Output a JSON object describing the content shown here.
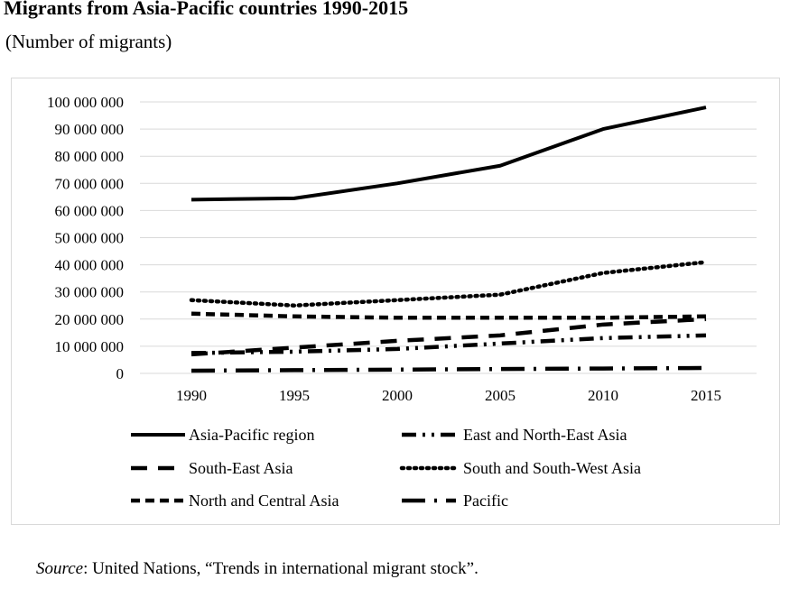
{
  "title": "Migrants from Asia-Pacific countries 1990-2015",
  "subtitle": "(Number of migrants)",
  "source": {
    "label": "Source",
    "text": ": United Nations, “Trends in international migrant stock”."
  },
  "chart_data": {
    "type": "line",
    "title": "Migrants from Asia-Pacific countries 1990-2015",
    "ylabel": "Number of migrants",
    "xlabel": "",
    "x": [
      "1990",
      "1995",
      "2000",
      "2005",
      "2010",
      "2015"
    ],
    "yticks": [
      "0",
      "10 000 000",
      "20 000 000",
      "30 000 000",
      "40 000 000",
      "50 000 000",
      "60 000 000",
      "70 000 000",
      "80 000 000",
      "90 000 000",
      "100 000 000"
    ],
    "ylim": [
      0,
      100000000
    ],
    "grid": true,
    "legend_position": "bottom",
    "series": [
      {
        "name": "Asia-Pacific region",
        "style": "solid",
        "values": [
          64000000,
          64500000,
          70000000,
          76500000,
          90000000,
          98000000
        ]
      },
      {
        "name": "East and North-East Asia",
        "style": "dash-dot-dot",
        "values": [
          7500000,
          8000000,
          9000000,
          11000000,
          13000000,
          14000000
        ]
      },
      {
        "name": "South-East Asia",
        "style": "long-dash",
        "values": [
          7000000,
          9500000,
          12000000,
          14000000,
          18000000,
          20000000
        ]
      },
      {
        "name": "South and South-West Asia",
        "style": "dotted",
        "values": [
          27000000,
          25000000,
          27000000,
          29000000,
          37000000,
          41000000
        ]
      },
      {
        "name": "North and Central Asia",
        "style": "dashed",
        "values": [
          22000000,
          21000000,
          20500000,
          20500000,
          20500000,
          21000000
        ]
      },
      {
        "name": "Pacific",
        "style": "long-dash-dot",
        "values": [
          1000000,
          1200000,
          1400000,
          1600000,
          1800000,
          2000000
        ]
      }
    ]
  }
}
